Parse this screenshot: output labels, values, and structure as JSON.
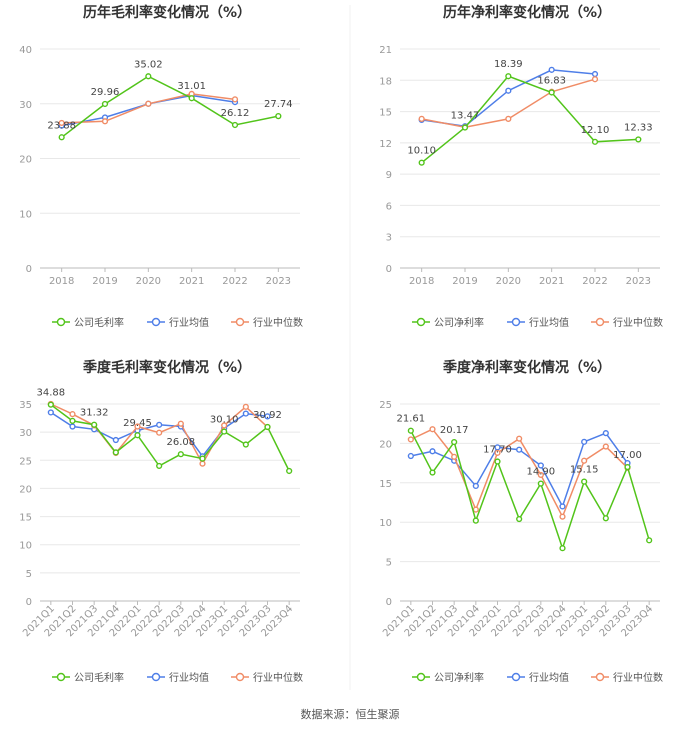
{
  "footer": {
    "source": "数据来源：恒生聚源"
  },
  "colors": {
    "company": "#52c41a",
    "avg": "#4e7ee8",
    "median": "#f08c66",
    "grid": "#e8e8e8",
    "axis": "#999999",
    "title": "#333333"
  },
  "chart_data": [
    {
      "type": "line",
      "title": "历年毛利率变化情况（%）",
      "categories": [
        "2018",
        "2019",
        "2020",
        "2021",
        "2022",
        "2023"
      ],
      "ylim": [
        0,
        40
      ],
      "yticks": [
        0,
        10,
        20,
        30,
        40
      ],
      "grid": true,
      "legend": "bottom-center",
      "series": [
        {
          "name": "公司毛利率",
          "values": [
            23.88,
            29.96,
            35.02,
            31.01,
            26.12,
            27.74
          ],
          "labels": [
            "23.88",
            "29.96",
            "35.02",
            "31.01",
            "26.12",
            "27.74"
          ]
        },
        {
          "name": "行业均值",
          "values": [
            26.0,
            27.5,
            30.0,
            31.5,
            30.3,
            null
          ]
        },
        {
          "name": "行业中位数",
          "values": [
            26.5,
            26.8,
            30.0,
            31.8,
            30.8,
            null
          ]
        }
      ]
    },
    {
      "type": "line",
      "title": "历年净利率变化情况（%）",
      "categories": [
        "2018",
        "2019",
        "2020",
        "2021",
        "2022",
        "2023"
      ],
      "ylim": [
        0,
        21
      ],
      "yticks": [
        0,
        3,
        6,
        9,
        12,
        15,
        18,
        21
      ],
      "grid": true,
      "legend": "bottom-center",
      "series": [
        {
          "name": "公司净利率",
          "values": [
            10.1,
            13.47,
            18.39,
            16.83,
            12.1,
            12.33
          ],
          "labels": [
            "10.10",
            "13.47",
            "18.39",
            "16.83",
            "12.10",
            "12.33"
          ]
        },
        {
          "name": "行业均值",
          "values": [
            14.2,
            13.6,
            17.0,
            19.0,
            18.6,
            null
          ]
        },
        {
          "name": "行业中位数",
          "values": [
            14.3,
            13.5,
            14.3,
            16.9,
            18.1,
            null
          ]
        }
      ]
    },
    {
      "type": "line",
      "title": "季度毛利率变化情况（%）",
      "categories": [
        "2021Q1",
        "2021Q2",
        "2021Q3",
        "2021Q4",
        "2022Q1",
        "2022Q2",
        "2022Q3",
        "2022Q4",
        "2023Q1",
        "2023Q2",
        "2023Q3",
        "2023Q4"
      ],
      "ylim": [
        0,
        35
      ],
      "yticks": [
        0,
        5,
        10,
        15,
        20,
        25,
        30,
        35
      ],
      "grid": true,
      "legend": "bottom-center",
      "series": [
        {
          "name": "公司毛利率",
          "values": [
            34.88,
            32.0,
            31.32,
            26.4,
            29.45,
            24.0,
            26.08,
            25.3,
            30.1,
            27.8,
            30.92,
            23.1
          ],
          "labels": [
            "34.88",
            "",
            "31.32",
            "",
            "29.45",
            "",
            "26.08",
            "",
            "30.10",
            "",
            "30.92",
            ""
          ]
        },
        {
          "name": "行业均值",
          "values": [
            33.5,
            31.0,
            30.5,
            28.6,
            30.3,
            31.3,
            31.0,
            25.7,
            30.7,
            33.3,
            32.8,
            null
          ]
        },
        {
          "name": "行业中位数",
          "values": [
            35.0,
            33.2,
            31.2,
            26.3,
            31.0,
            29.9,
            31.5,
            24.4,
            31.2,
            34.5,
            30.9,
            null
          ]
        }
      ]
    },
    {
      "type": "line",
      "title": "季度净利率变化情况（%）",
      "categories": [
        "2021Q1",
        "2021Q2",
        "2021Q3",
        "2021Q4",
        "2022Q1",
        "2022Q2",
        "2022Q3",
        "2022Q4",
        "2023Q1",
        "2023Q2",
        "2023Q3",
        "2023Q4"
      ],
      "ylim": [
        0,
        25
      ],
      "yticks": [
        0,
        5,
        10,
        15,
        20,
        25
      ],
      "grid": true,
      "legend": "bottom-center",
      "series": [
        {
          "name": "公司净利率",
          "values": [
            21.61,
            16.3,
            20.17,
            10.2,
            17.7,
            10.4,
            14.9,
            6.7,
            15.15,
            10.5,
            17.0,
            7.7
          ],
          "labels": [
            "21.61",
            "",
            "20.17",
            "",
            "17.70",
            "",
            "14.90",
            "",
            "15.15",
            "",
            "17.00",
            ""
          ]
        },
        {
          "name": "行业均值",
          "values": [
            18.4,
            19.0,
            17.8,
            14.6,
            19.5,
            19.2,
            17.2,
            12.0,
            20.2,
            21.3,
            17.5,
            null
          ]
        },
        {
          "name": "行业中位数",
          "values": [
            20.5,
            21.8,
            18.3,
            11.6,
            18.8,
            20.6,
            16.0,
            10.7,
            17.8,
            19.6,
            16.9,
            null
          ]
        }
      ]
    }
  ]
}
